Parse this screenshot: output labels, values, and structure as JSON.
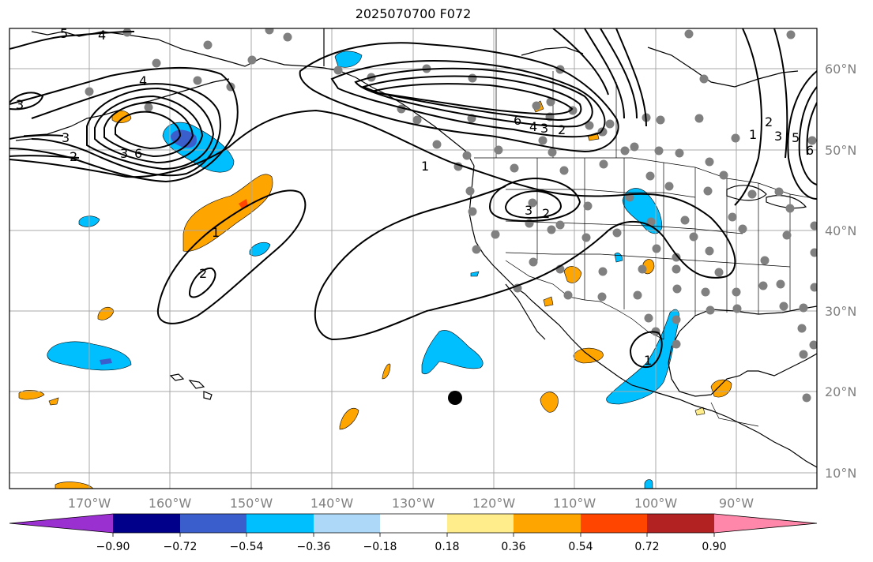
{
  "title": "2025070700 F072",
  "map": {
    "lon_labels": [
      "170°W",
      "160°W",
      "150°W",
      "140°W",
      "130°W",
      "120°W",
      "110°W",
      "100°W",
      "90°W"
    ],
    "lat_labels": [
      "60°N",
      "50°N",
      "40°N",
      "30°N",
      "20°N",
      "10°N"
    ],
    "extent": {
      "lon_min": -178,
      "lon_max": -78,
      "lat_min": 8,
      "lat_max": 65
    }
  },
  "colorbar": {
    "ticks": [
      "−0.90",
      "−0.72",
      "−0.54",
      "−0.36",
      "−0.18",
      "0.18",
      "0.36",
      "0.54",
      "0.72",
      "0.90"
    ],
    "colors": [
      "#9b30d0",
      "#00008b",
      "#3a5fcd",
      "#00bfff",
      "#add8f7",
      "#ffffff",
      "#ffec8b",
      "#ffa500",
      "#ff4500",
      "#b22222",
      "#ff88aa"
    ]
  },
  "contour_labels": [
    "1",
    "1",
    "1",
    "1",
    "2",
    "2",
    "2",
    "2",
    "2",
    "3",
    "3",
    "3",
    "3",
    "3",
    "3",
    "4",
    "4",
    "4",
    "5",
    "5",
    "6",
    "6",
    "6"
  ],
  "markers": {
    "big_dot_color": "#000000",
    "station_color": "#808080"
  }
}
